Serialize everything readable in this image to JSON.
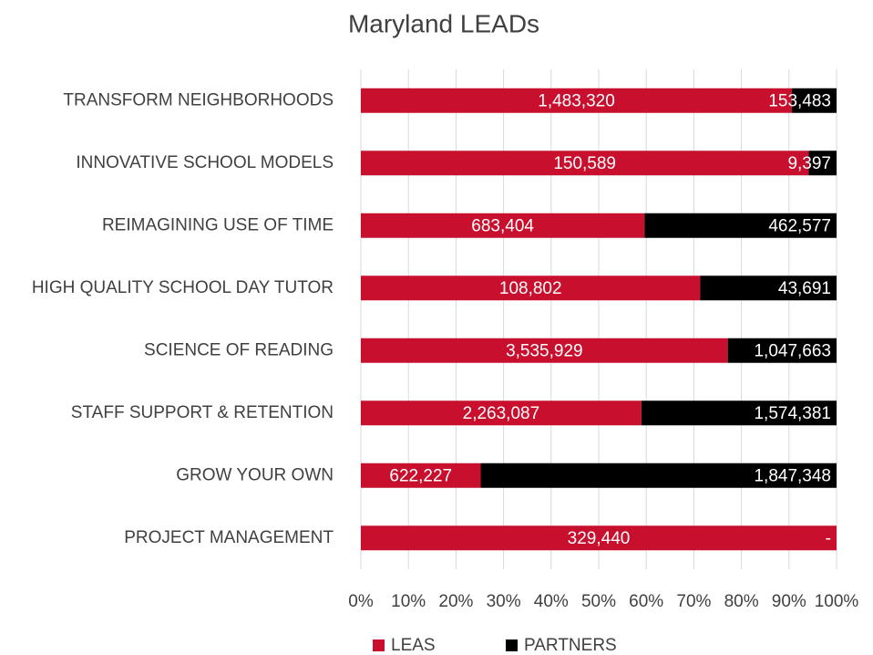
{
  "chart_data": {
    "type": "bar",
    "orientation": "horizontal",
    "stacking": "percent",
    "title": "Maryland LEADs",
    "categories": [
      "TRANSFORM NEIGHBORHOODS",
      "INNOVATIVE SCHOOL MODELS",
      "REIMAGINING USE OF TIME",
      "HIGH QUALITY SCHOOL DAY TUTOR",
      "SCIENCE OF READING",
      "STAFF SUPPORT & RETENTION",
      "GROW YOUR OWN",
      "PROJECT MANAGEMENT"
    ],
    "series": [
      {
        "name": "LEAS",
        "color": "#c8102e",
        "values": [
          1483320,
          150589,
          683404,
          108802,
          3535929,
          2263087,
          622227,
          329440
        ],
        "value_labels": [
          "1,483,320",
          "150,589",
          "683,404",
          "108,802",
          "3,535,929",
          "2,263,087",
          "622,227",
          "329,440"
        ]
      },
      {
        "name": "PARTNERS",
        "color": "#000000",
        "values": [
          153483,
          9397,
          462577,
          43691,
          1047663,
          1574381,
          1847348,
          0
        ],
        "value_labels": [
          "153,483",
          "9,397",
          "462,577",
          "43,691",
          "1,047,663",
          "1,574,381",
          "1,847,348",
          "-"
        ]
      }
    ],
    "xlim": [
      0,
      100
    ],
    "xticks": [
      {
        "value": 0,
        "label": "0%"
      },
      {
        "value": 10,
        "label": "10%"
      },
      {
        "value": 20,
        "label": "20%"
      },
      {
        "value": 30,
        "label": "30%"
      },
      {
        "value": 40,
        "label": "40%"
      },
      {
        "value": 50,
        "label": "50%"
      },
      {
        "value": 60,
        "label": "60%"
      },
      {
        "value": 70,
        "label": "70%"
      },
      {
        "value": 80,
        "label": "80%"
      },
      {
        "value": 90,
        "label": "90%"
      },
      {
        "value": 100,
        "label": "100%"
      }
    ],
    "grid": true,
    "legend": "bottom"
  }
}
